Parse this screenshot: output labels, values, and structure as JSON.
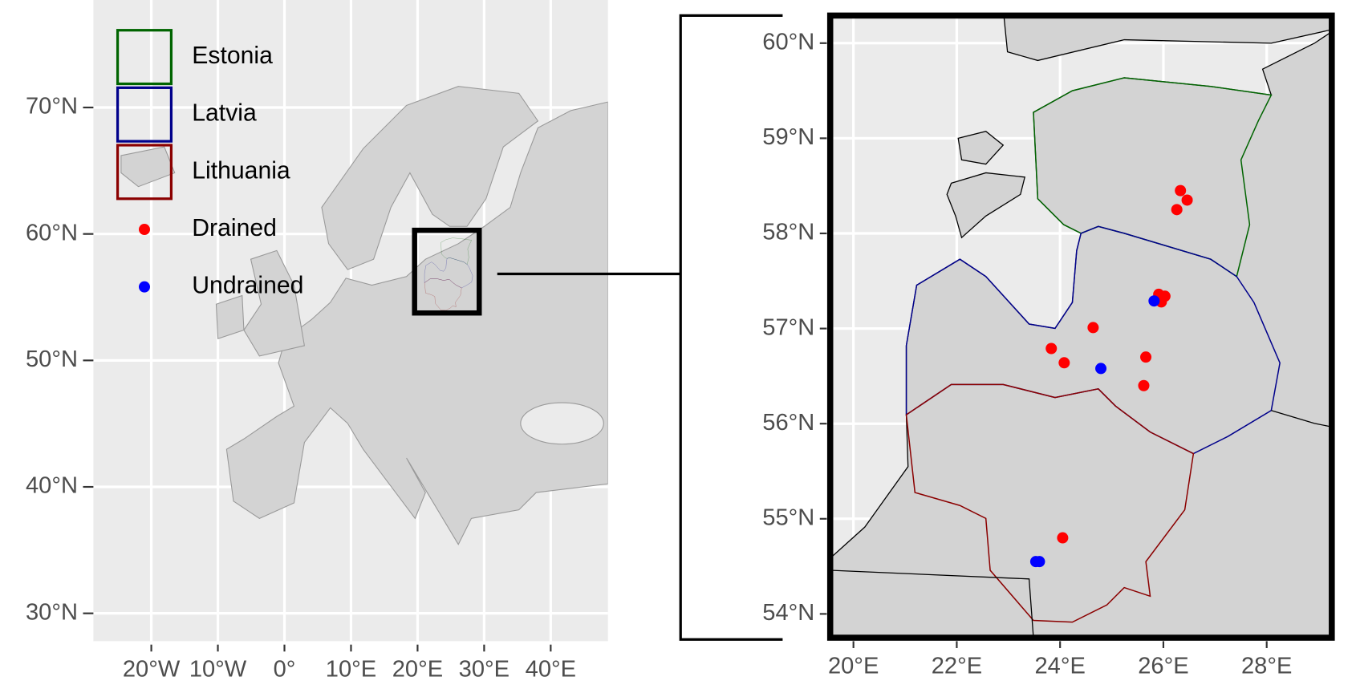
{
  "chart_data": [
    {
      "type": "map",
      "xlim": [
        -28.7,
        48.6
      ],
      "ylim": [
        27.8,
        78.5
      ],
      "xticks": [
        {
          "value": -20,
          "label": "20°W"
        },
        {
          "value": -10,
          "label": "10°W"
        },
        {
          "value": 0,
          "label": "0°"
        },
        {
          "value": 10,
          "label": "10°E"
        },
        {
          "value": 20,
          "label": "20°E"
        },
        {
          "value": 30,
          "label": "30°E"
        },
        {
          "value": 40,
          "label": "40°E"
        }
      ],
      "yticks": [
        {
          "value": 30,
          "label": "30°N"
        },
        {
          "value": 40,
          "label": "40°N"
        },
        {
          "value": 50,
          "label": "50°N"
        },
        {
          "value": 60,
          "label": "60°N"
        },
        {
          "value": 70,
          "label": "70°N"
        }
      ],
      "grid": true,
      "regions": [
        {
          "name": "Estonia",
          "color": "#006400"
        },
        {
          "name": "Latvia",
          "color": "#00008b"
        },
        {
          "name": "Lithuania",
          "color": "#8b0000"
        }
      ]
    },
    {
      "type": "scatter",
      "xlim": [
        19.55,
        29.26
      ],
      "ylim": [
        53.75,
        60.29
      ],
      "xticks": [
        {
          "value": 20,
          "label": "20°E"
        },
        {
          "value": 22,
          "label": "22°E"
        },
        {
          "value": 24,
          "label": "24°E"
        },
        {
          "value": 26,
          "label": "26°E"
        },
        {
          "value": 28,
          "label": "28°E"
        }
      ],
      "yticks": [
        {
          "value": 54,
          "label": "54°N"
        },
        {
          "value": 55,
          "label": "55°N"
        },
        {
          "value": 56,
          "label": "56°N"
        },
        {
          "value": 57,
          "label": "57°N"
        },
        {
          "value": 58,
          "label": "58°N"
        },
        {
          "value": 59,
          "label": "59°N"
        },
        {
          "value": 60,
          "label": "60°N"
        }
      ],
      "grid": true,
      "series": [
        {
          "name": "Drained",
          "color": "#ff0000",
          "x": [
            26.33,
            26.46,
            26.26,
            25.91,
            26.03,
            25.96,
            24.64,
            23.83,
            24.08,
            25.66,
            25.62,
            24.05
          ],
          "y": [
            58.45,
            58.35,
            58.25,
            57.36,
            57.34,
            57.28,
            57.01,
            56.79,
            56.64,
            56.7,
            56.4,
            54.8
          ]
        },
        {
          "name": "Undrained",
          "color": "#0000ff",
          "x": [
            25.82,
            24.79,
            23.53,
            23.6
          ],
          "y": [
            57.29,
            56.58,
            54.55,
            54.55
          ]
        }
      ]
    }
  ]
}
